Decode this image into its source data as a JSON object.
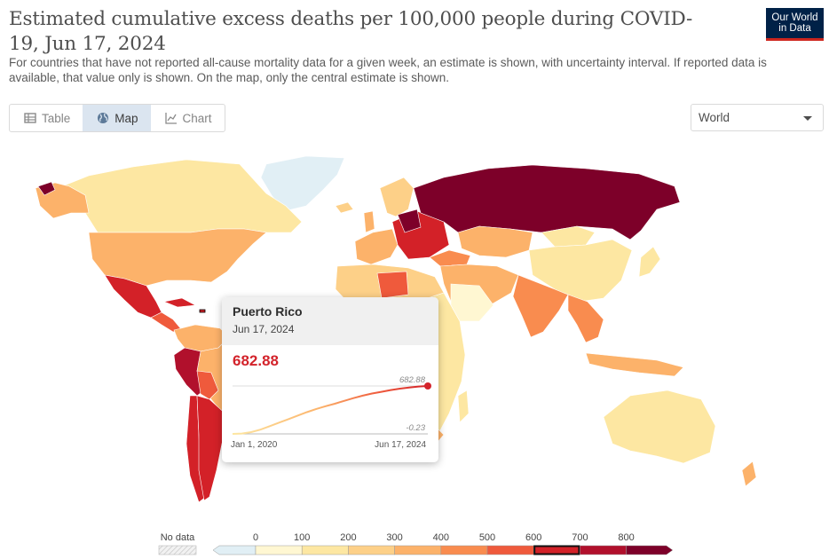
{
  "header": {
    "title": "Estimated cumulative excess deaths per 100,000 people during COVID-19, Jun 17, 2024",
    "subtitle": "For countries that have not reported all-cause mortality data for a given week, an estimate is shown, with uncertainty interval. If reported data is available, that value only is shown. On the map, only the central estimate is shown."
  },
  "logo": {
    "line1": "Our World",
    "line2": "in Data"
  },
  "tabs": [
    {
      "label": "Table",
      "icon": "table-icon",
      "active": false
    },
    {
      "label": "Map",
      "icon": "globe-icon",
      "active": true
    },
    {
      "label": "Chart",
      "icon": "line-chart-icon",
      "active": false
    }
  ],
  "region_select": {
    "value": "World"
  },
  "tooltip": {
    "country": "Puerto Rico",
    "date": "Jun 17, 2024",
    "value": "682.88",
    "spark_max_label": "682.88",
    "spark_min_label": "-0.23",
    "start_label": "Jan 1, 2020",
    "end_label": "Jun 17, 2024",
    "series": [
      -0.23,
      5,
      25,
      60,
      110,
      160,
      210,
      260,
      310,
      355,
      395,
      430,
      470,
      510,
      545,
      575,
      600,
      625,
      645,
      662,
      675,
      682.88
    ]
  },
  "legend": {
    "no_data_label": "No data",
    "ticks": [
      "0",
      "100",
      "200",
      "300",
      "400",
      "500",
      "600",
      "700",
      "800"
    ],
    "colors": [
      "#e1eff5",
      "#fff7d2",
      "#fde7a2",
      "#fdd088",
      "#fcb26a",
      "#f98c4f",
      "#ef5a3c",
      "#d32128",
      "#b1102c",
      "#7d0029"
    ],
    "highlighted_bin": "600–700"
  },
  "colors": {
    "c_nodata": "#e1eff5",
    "c0": "#fff7d2",
    "c1": "#fde7a2",
    "c2": "#fdd088",
    "c3": "#fcb26a",
    "c4": "#f98c4f",
    "c5": "#ef5a3c",
    "c6": "#d32128",
    "c7": "#b1102c",
    "c8": "#7d0029",
    "accent": "#d3232b",
    "brand": "#002147"
  }
}
